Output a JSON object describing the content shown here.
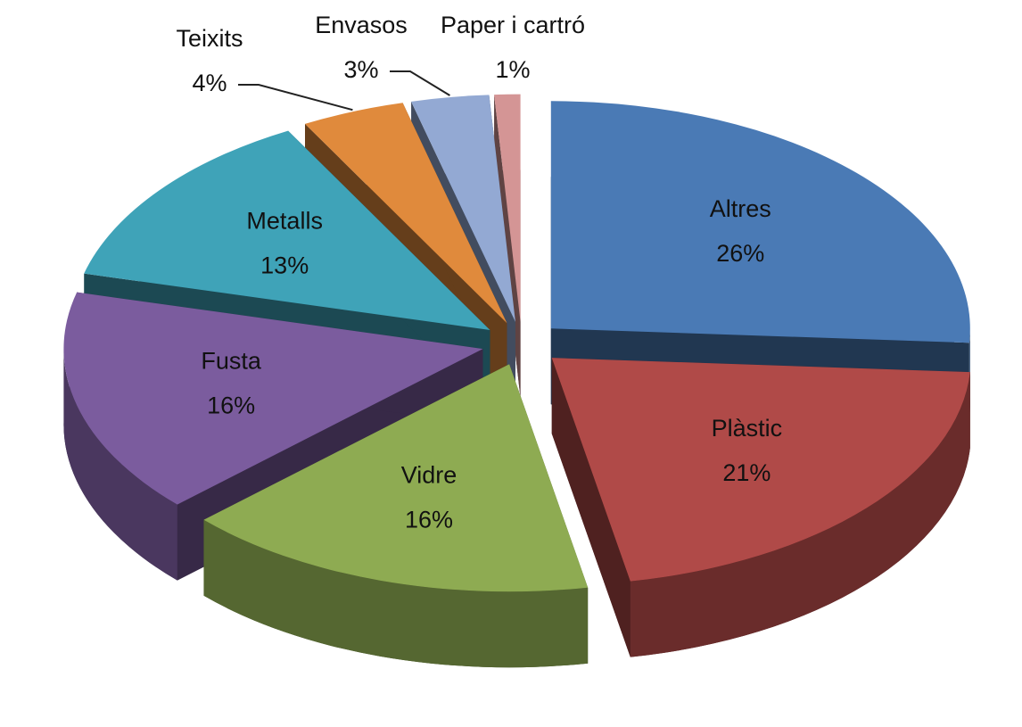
{
  "chart_data": {
    "type": "pie",
    "categories": [
      "Altres",
      "Plàstic",
      "Vidre",
      "Fusta",
      "Metalls",
      "Teixits",
      "Envasos",
      "Paper i cartró"
    ],
    "values": [
      26,
      21,
      16,
      16,
      13,
      4,
      3,
      1
    ],
    "value_labels": [
      "26%",
      "21%",
      "16%",
      "16%",
      "13%",
      "4%",
      "3%",
      "1%"
    ],
    "colors": [
      "#4a7ab5",
      "#b04a48",
      "#8eab52",
      "#7b5c9e",
      "#3fa3b8",
      "#e08a3c",
      "#93a9d3",
      "#d49595"
    ]
  }
}
